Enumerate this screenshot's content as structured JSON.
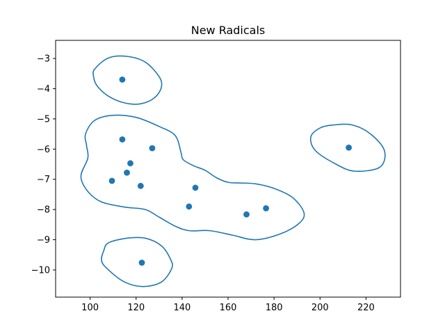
{
  "chart_data": {
    "type": "scatter",
    "title": "New Radicals",
    "xlabel": "",
    "ylabel": "",
    "xlim": [
      85,
      235
    ],
    "ylim": [
      -10.9,
      -2.4
    ],
    "xticks": [
      100,
      120,
      140,
      160,
      180,
      200,
      220
    ],
    "yticks": [
      -3,
      -4,
      -5,
      -6,
      -7,
      -8,
      -9,
      -10
    ],
    "xtick_labels": [
      "100",
      "120",
      "140",
      "160",
      "180",
      "200",
      "220"
    ],
    "ytick_labels": [
      "−3",
      "−4",
      "−5",
      "−6",
      "−7",
      "−8",
      "−9",
      "−10"
    ],
    "grid": false,
    "color": "#1f77b4",
    "points": [
      {
        "x": 114.0,
        "y": -3.7
      },
      {
        "x": 114.0,
        "y": -5.68
      },
      {
        "x": 127.0,
        "y": -5.97
      },
      {
        "x": 117.5,
        "y": -6.47
      },
      {
        "x": 116.0,
        "y": -6.78
      },
      {
        "x": 109.5,
        "y": -7.05
      },
      {
        "x": 122.0,
        "y": -7.22
      },
      {
        "x": 145.8,
        "y": -7.28
      },
      {
        "x": 143.0,
        "y": -7.9
      },
      {
        "x": 176.5,
        "y": -7.96
      },
      {
        "x": 168.0,
        "y": -8.16
      },
      {
        "x": 212.5,
        "y": -5.95
      },
      {
        "x": 122.5,
        "y": -9.76
      }
    ],
    "contours": [
      [
        [
          102,
          -3.35
        ],
        [
          108,
          -2.98
        ],
        [
          116,
          -2.93
        ],
        [
          124,
          -3.12
        ],
        [
          130,
          -3.6
        ],
        [
          131,
          -3.95
        ],
        [
          128,
          -4.3
        ],
        [
          122,
          -4.5
        ],
        [
          115,
          -4.47
        ],
        [
          108,
          -4.25
        ],
        [
          103,
          -3.9
        ],
        [
          101.5,
          -3.6
        ]
      ],
      [
        [
          98,
          -5.5
        ],
        [
          102,
          -5.05
        ],
        [
          110,
          -4.88
        ],
        [
          120,
          -4.95
        ],
        [
          130,
          -5.25
        ],
        [
          137,
          -5.55
        ],
        [
          139.5,
          -6.1
        ],
        [
          140.5,
          -6.35
        ],
        [
          145,
          -6.55
        ],
        [
          150,
          -6.7
        ],
        [
          155,
          -6.95
        ],
        [
          160,
          -7.1
        ],
        [
          165,
          -7.12
        ],
        [
          172,
          -7.15
        ],
        [
          180,
          -7.3
        ],
        [
          188,
          -7.6
        ],
        [
          193,
          -8.1
        ],
        [
          191,
          -8.45
        ],
        [
          183,
          -8.8
        ],
        [
          172,
          -9.0
        ],
        [
          162,
          -8.85
        ],
        [
          152,
          -8.7
        ],
        [
          143,
          -8.7
        ],
        [
          137,
          -8.55
        ],
        [
          130,
          -8.25
        ],
        [
          124,
          -8.0
        ],
        [
          115,
          -7.92
        ],
        [
          105,
          -7.75
        ],
        [
          99,
          -7.4
        ],
        [
          96,
          -6.9
        ],
        [
          99,
          -6.3
        ],
        [
          98.5,
          -5.9
        ]
      ],
      [
        [
          206,
          -5.2
        ],
        [
          214,
          -5.2
        ],
        [
          222,
          -5.5
        ],
        [
          228,
          -6.05
        ],
        [
          226,
          -6.6
        ],
        [
          215,
          -6.73
        ],
        [
          207,
          -6.5
        ],
        [
          198,
          -6.05
        ],
        [
          196,
          -5.6
        ],
        [
          200,
          -5.3
        ]
      ],
      [
        [
          108,
          -9.1
        ],
        [
          116,
          -8.95
        ],
        [
          124,
          -8.95
        ],
        [
          131,
          -9.2
        ],
        [
          135,
          -9.65
        ],
        [
          135.5,
          -9.95
        ],
        [
          131,
          -10.4
        ],
        [
          123,
          -10.55
        ],
        [
          115,
          -10.4
        ],
        [
          108,
          -10.0
        ],
        [
          105,
          -9.7
        ],
        [
          106,
          -9.35
        ]
      ]
    ]
  }
}
